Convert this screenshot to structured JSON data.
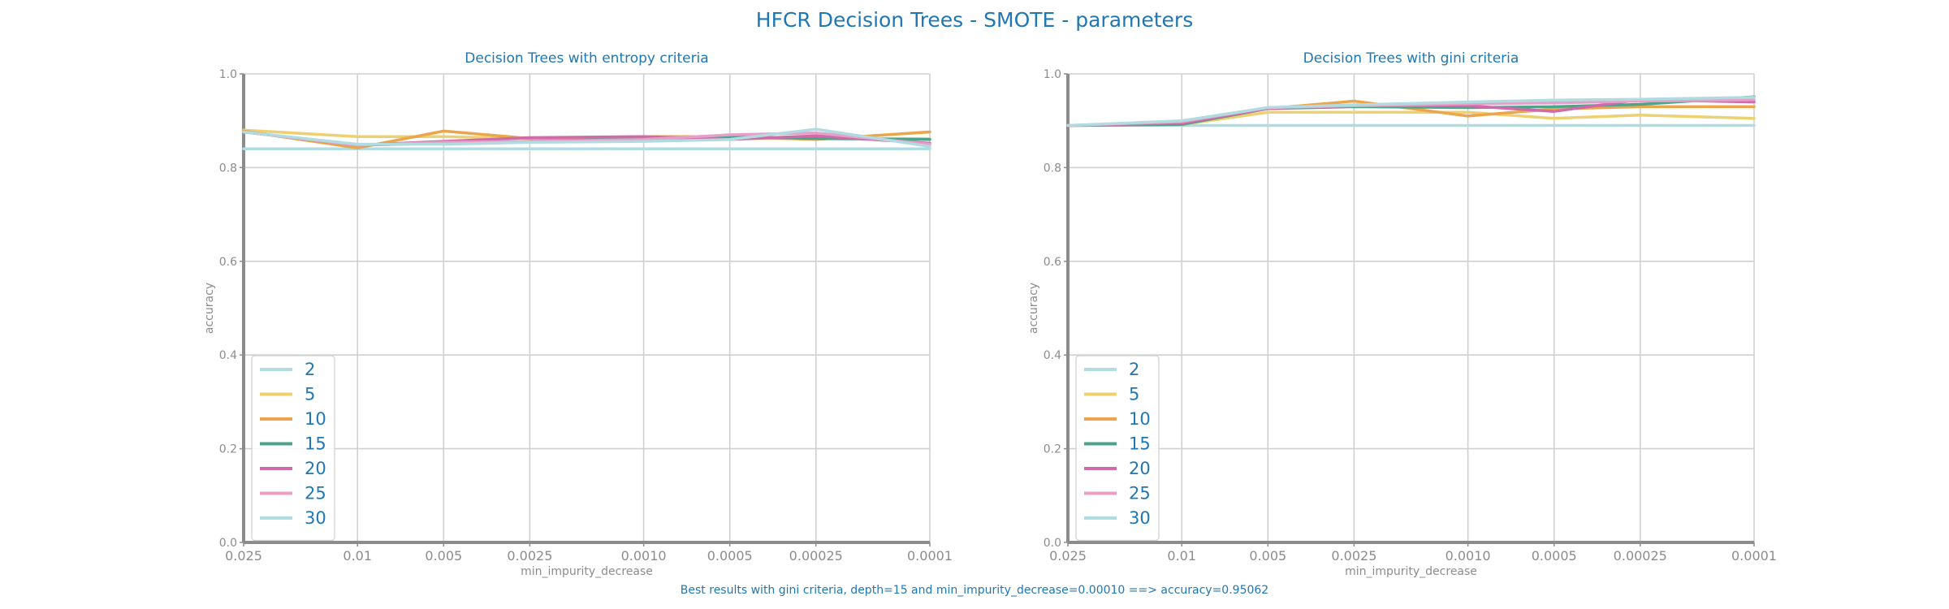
{
  "figure": {
    "suptitle": "HFCR Decision Trees - SMOTE - parameters",
    "footer": "Best results with gini criteria, depth=15 and min_impurity_decrease=0.00010 ==> accuracy=0.95062"
  },
  "colors": {
    "series": [
      "#b0dbe0",
      "#ecd072",
      "#eba64c",
      "#4ca58a",
      "#cf6ba8",
      "#e6a0c8",
      "#b0dbe0"
    ],
    "axes_text": "#8c8c8c",
    "title_text": "#1f77b4",
    "grid": "#d0d0d0",
    "spine": "#8c8c8c"
  },
  "chart_data": [
    {
      "type": "line",
      "title": "Decision Trees with entropy criteria",
      "xlabel": "min_impurity_decrease",
      "ylabel": "accuracy",
      "x_scale": "log (reversed)",
      "ylim": [
        0,
        1
      ],
      "yticks": [
        "0.0",
        "0.2",
        "0.4",
        "0.6",
        "0.8",
        "1.0"
      ],
      "x": [
        0.025,
        0.01,
        0.005,
        0.0025,
        0.001,
        0.0005,
        0.00025,
        0.0001
      ],
      "xtick_labels": [
        "0.025",
        "0.01",
        "0.005",
        "0.0025",
        "0.0010",
        "0.0005",
        "0.00025",
        "0.0001"
      ],
      "grid": true,
      "legend": "lower-left",
      "series": [
        {
          "name": "2",
          "values": [
            0.84,
            0.84,
            0.84,
            0.84,
            0.84,
            0.84,
            0.84,
            0.84
          ]
        },
        {
          "name": "5",
          "values": [
            0.88,
            0.866,
            0.866,
            0.862,
            0.862,
            0.862,
            0.862,
            0.862
          ]
        },
        {
          "name": "10",
          "values": [
            0.878,
            0.842,
            0.878,
            0.862,
            0.866,
            0.866,
            0.86,
            0.876
          ]
        },
        {
          "name": "15",
          "values": [
            0.876,
            0.848,
            0.852,
            0.856,
            0.862,
            0.866,
            0.862,
            0.86
          ]
        },
        {
          "name": "20",
          "values": [
            0.876,
            0.848,
            0.856,
            0.864,
            0.866,
            0.86,
            0.868,
            0.852
          ]
        },
        {
          "name": "25",
          "values": [
            0.876,
            0.848,
            0.854,
            0.856,
            0.86,
            0.87,
            0.874,
            0.85
          ]
        },
        {
          "name": "30",
          "values": [
            0.876,
            0.85,
            0.85,
            0.854,
            0.856,
            0.86,
            0.882,
            0.845
          ]
        }
      ]
    },
    {
      "type": "line",
      "title": "Decision Trees with gini criteria",
      "xlabel": "min_impurity_decrease",
      "ylabel": "accuracy",
      "x_scale": "log (reversed)",
      "ylim": [
        0,
        1
      ],
      "yticks": [
        "0.0",
        "0.2",
        "0.4",
        "0.6",
        "0.8",
        "1.0"
      ],
      "x": [
        0.025,
        0.01,
        0.005,
        0.0025,
        0.001,
        0.0005,
        0.00025,
        0.0001
      ],
      "xtick_labels": [
        "0.025",
        "0.01",
        "0.005",
        "0.0025",
        "0.0010",
        "0.0005",
        "0.00025",
        "0.0001"
      ],
      "grid": true,
      "legend": "lower-left",
      "series": [
        {
          "name": "2",
          "values": [
            0.89,
            0.89,
            0.89,
            0.89,
            0.89,
            0.89,
            0.89,
            0.89
          ]
        },
        {
          "name": "5",
          "values": [
            0.89,
            0.892,
            0.918,
            0.918,
            0.918,
            0.905,
            0.912,
            0.905
          ]
        },
        {
          "name": "10",
          "values": [
            0.89,
            0.892,
            0.926,
            0.942,
            0.91,
            0.925,
            0.93,
            0.93
          ]
        },
        {
          "name": "15",
          "values": [
            0.89,
            0.892,
            0.926,
            0.93,
            0.928,
            0.93,
            0.935,
            0.951
          ]
        },
        {
          "name": "20",
          "values": [
            0.89,
            0.895,
            0.926,
            0.932,
            0.932,
            0.92,
            0.945,
            0.94
          ]
        },
        {
          "name": "25",
          "values": [
            0.89,
            0.898,
            0.928,
            0.932,
            0.936,
            0.938,
            0.942,
            0.945
          ]
        },
        {
          "name": "30",
          "values": [
            0.89,
            0.9,
            0.928,
            0.934,
            0.94,
            0.944,
            0.946,
            0.95
          ]
        }
      ]
    }
  ]
}
